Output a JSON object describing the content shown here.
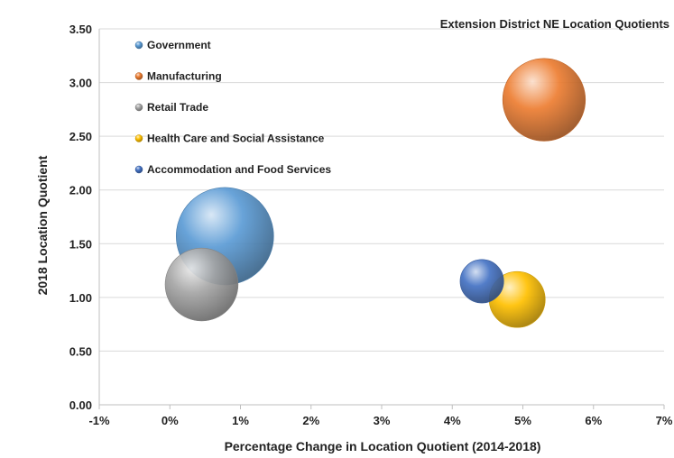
{
  "chart_data": {
    "type": "bubble",
    "title": "Extension District NE Location Quotients",
    "xlabel": "Percentage Change in Location Quotient (2014-2018)",
    "ylabel": "2018 Location Quotient",
    "xlim": [
      -0.01,
      0.07
    ],
    "ylim": [
      0,
      3.5
    ],
    "x_ticks": [
      -0.01,
      0,
      0.01,
      0.02,
      0.03,
      0.04,
      0.05,
      0.06,
      0.07
    ],
    "x_tick_labels": [
      "-1%",
      "0%",
      "1%",
      "2%",
      "3%",
      "4%",
      "5%",
      "6%",
      "7%"
    ],
    "y_ticks": [
      0,
      0.5,
      1,
      1.5,
      2,
      2.5,
      3,
      3.5
    ],
    "y_tick_labels": [
      "0.00",
      "0.50",
      "1.00",
      "1.50",
      "2.00",
      "2.50",
      "3.00",
      "3.50"
    ],
    "grid": {
      "horizontal": true,
      "vertical": false
    },
    "legend_position": "top-left",
    "series": [
      {
        "name": "Government",
        "x": 0.0078,
        "y": 1.57,
        "relative_size": 1.0,
        "color": "#5b9bd5"
      },
      {
        "name": "Manufacturing",
        "x": 0.053,
        "y": 2.84,
        "relative_size": 0.72,
        "color": "#ed7d31"
      },
      {
        "name": "Retail Trade",
        "x": 0.0045,
        "y": 1.12,
        "relative_size": 0.56,
        "color": "#a5a5a5"
      },
      {
        "name": "Health Care and Social Assistance",
        "x": 0.0492,
        "y": 0.98,
        "relative_size": 0.33,
        "color": "#ffc000"
      },
      {
        "name": "Accommodation and Food Services",
        "x": 0.0442,
        "y": 1.15,
        "relative_size": 0.2,
        "color": "#4472c4"
      }
    ]
  }
}
